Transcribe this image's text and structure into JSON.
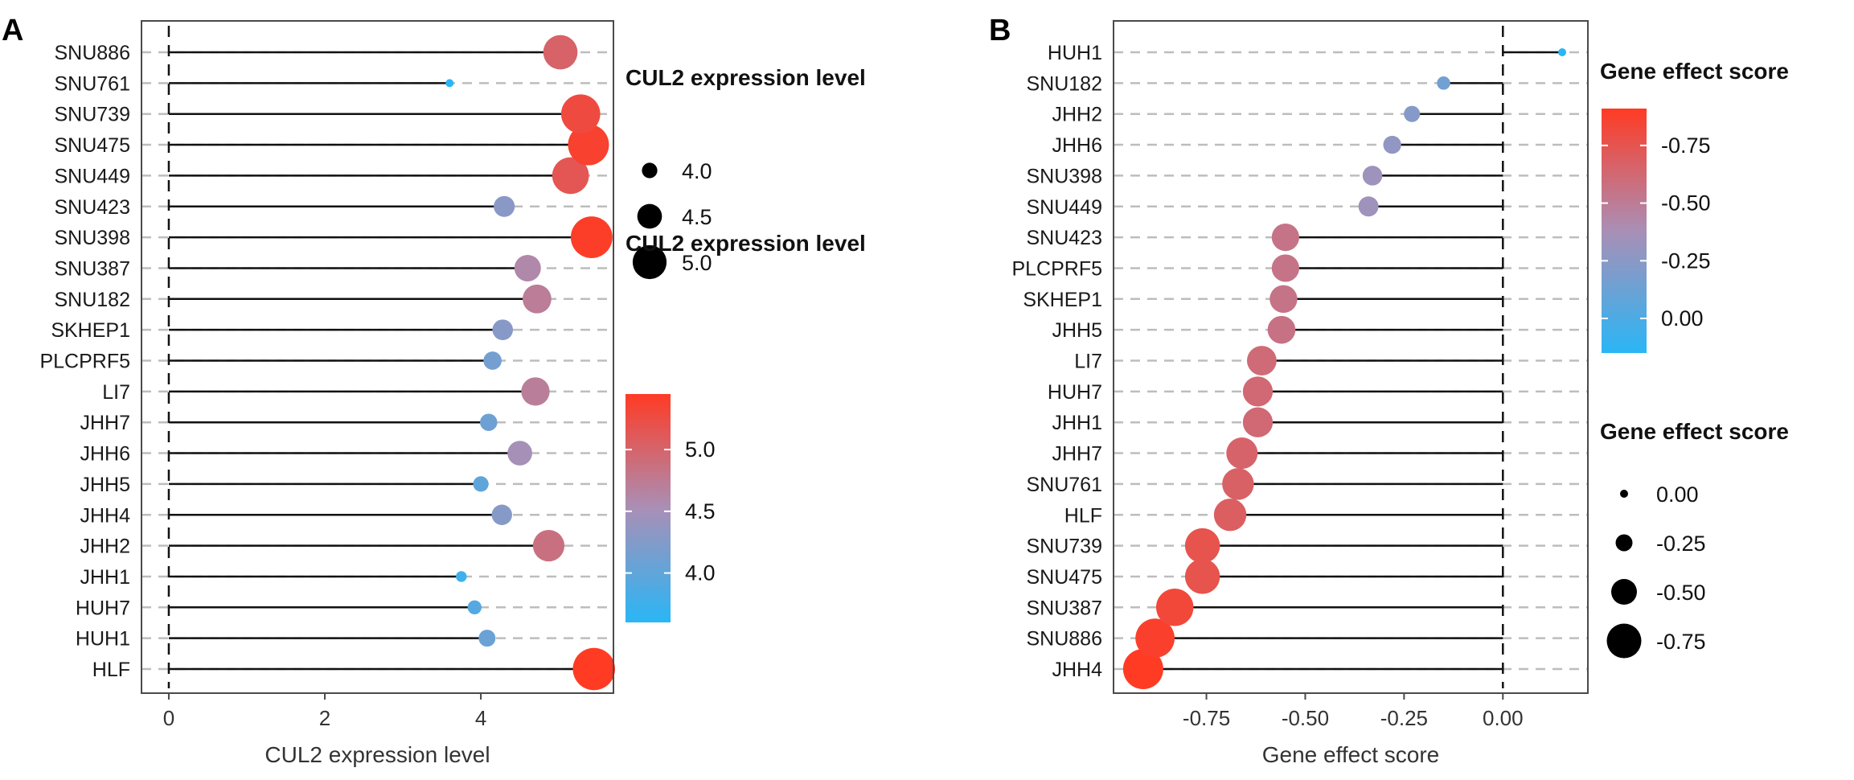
{
  "chart_data": [
    {
      "panel": "A",
      "type": "scatter",
      "subtype": "lollipop",
      "categories": [
        "HLF",
        "HUH1",
        "HUH7",
        "JHH1",
        "JHH2",
        "JHH4",
        "JHH5",
        "JHH6",
        "JHH7",
        "LI7",
        "PLCPRF5",
        "SKHEP1",
        "SNU182",
        "SNU387",
        "SNU398",
        "SNU423",
        "SNU449",
        "SNU475",
        "SNU739",
        "SNU761",
        "SNU886"
      ],
      "values": [
        5.45,
        4.08,
        3.92,
        3.75,
        4.87,
        4.27,
        4.0,
        4.5,
        4.1,
        4.7,
        4.15,
        4.28,
        4.72,
        4.6,
        5.42,
        4.3,
        5.15,
        5.38,
        5.28,
        3.6,
        5.02
      ],
      "baseline": 0,
      "xlabel": "CUL2 expression level",
      "xlim": [
        -0.35,
        5.7
      ],
      "xticks": [
        0,
        2,
        4
      ],
      "grid": "dashed-horizontal",
      "size_legend": {
        "title": "CUL2 expression level",
        "values": [
          4.0,
          4.5,
          5.0
        ],
        "labels": [
          "4.0",
          "4.5",
          "5.0"
        ]
      },
      "color_legend": {
        "title": "CUL2 expression level",
        "range": [
          3.6,
          5.45
        ],
        "ticks": [
          5.0,
          4.5,
          4.0
        ],
        "tick_labels": [
          "5.0",
          "4.5",
          "4.0"
        ],
        "low_color": "#29b6f6",
        "mid_color": "#a98fb6",
        "high_color": "#ff3b24"
      },
      "legend_position": "right"
    },
    {
      "panel": "B",
      "type": "scatter",
      "subtype": "lollipop",
      "categories": [
        "JHH4",
        "SNU886",
        "SNU387",
        "SNU475",
        "SNU739",
        "HLF",
        "SNU761",
        "JHH7",
        "JHH1",
        "HUH7",
        "LI7",
        "JHH5",
        "SKHEP1",
        "PLCPRF5",
        "SNU423",
        "SNU449",
        "SNU398",
        "JHH6",
        "JHH2",
        "SNU182",
        "HUH1"
      ],
      "values": [
        -0.91,
        -0.88,
        -0.83,
        -0.76,
        -0.76,
        -0.69,
        -0.67,
        -0.66,
        -0.62,
        -0.62,
        -0.61,
        -0.56,
        -0.555,
        -0.55,
        -0.55,
        -0.34,
        -0.33,
        -0.28,
        -0.23,
        -0.15,
        0.15
      ],
      "baseline": 0,
      "xlabel": "Gene effect score",
      "xlim": [
        -0.985,
        0.215
      ],
      "xticks": [
        -0.75,
        -0.5,
        -0.25,
        0.0
      ],
      "xtick_labels": [
        "-0.75",
        "-0.50",
        "-0.25",
        "0.00"
      ],
      "grid": "dashed-horizontal",
      "color_legend": {
        "title": "Gene effect score",
        "range": [
          -0.91,
          0.15
        ],
        "ticks": [
          -0.75,
          -0.5,
          -0.25,
          0.0
        ],
        "tick_labels": [
          "-0.75",
          "-0.50",
          "-0.25",
          "0.00"
        ],
        "low_color": "#29b6f6",
        "mid_color": "#a98fb6",
        "high_color": "#ff3b24"
      },
      "size_legend": {
        "title": "Gene effect score",
        "values": [
          0.0,
          -0.25,
          -0.5,
          -0.75
        ],
        "labels": [
          "0.00",
          "-0.25",
          "-0.50",
          "-0.75"
        ]
      },
      "legend_position": "right"
    }
  ],
  "panel_labels": [
    "A",
    "B"
  ]
}
